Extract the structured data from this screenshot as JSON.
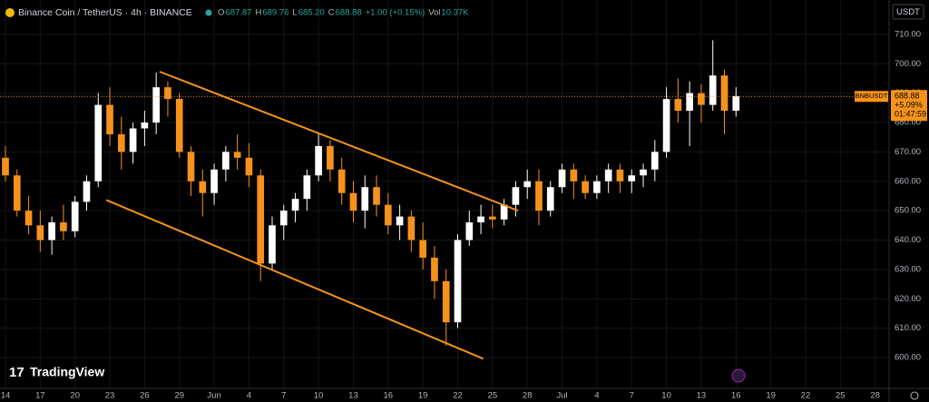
{
  "header": {
    "symbol": "Binance Coin / TetherUS · 4h · BINANCE",
    "ohlc": [
      {
        "label": "O",
        "value": "687.87"
      },
      {
        "label": "H",
        "value": "689.76"
      },
      {
        "label": "L",
        "value": "685.20"
      },
      {
        "label": "C",
        "value": "688.88"
      }
    ],
    "change": "+1.00 (+0.15%)",
    "volume_label": "Vol",
    "volume": "10.37K",
    "currency": "USDT",
    "logo": "TradingView"
  },
  "chart_data": {
    "type": "candlestick",
    "x": [
      0,
      1,
      2,
      3,
      4,
      5,
      6,
      7,
      8,
      9,
      10,
      11,
      12,
      13,
      14,
      15,
      16,
      17,
      18,
      19,
      20,
      21,
      22,
      23,
      24,
      25,
      26,
      27,
      28,
      29,
      30,
      31,
      32,
      33,
      34,
      35,
      36,
      37,
      38,
      39,
      40,
      41,
      42,
      43,
      44,
      45,
      46,
      47,
      48,
      49,
      50,
      51,
      52,
      53,
      54,
      55,
      56,
      57,
      58,
      59,
      60,
      61,
      62,
      63
    ],
    "open": [
      668,
      662,
      650,
      645,
      640,
      646,
      643,
      653,
      660,
      686,
      676,
      670,
      678,
      680,
      692,
      688,
      670,
      660,
      656,
      664,
      670,
      668,
      662,
      632,
      645,
      650,
      654,
      662,
      672,
      664,
      656,
      650,
      658,
      652,
      645,
      648,
      640,
      634,
      626,
      612,
      640,
      646,
      648,
      647,
      652,
      658,
      660,
      650,
      658,
      664,
      660,
      656,
      660,
      664,
      660,
      662,
      664,
      670,
      688,
      684,
      690,
      686,
      696,
      684
    ],
    "high": [
      672,
      664,
      655,
      650,
      648,
      652,
      655,
      662,
      690,
      692,
      682,
      680,
      684,
      697,
      694,
      690,
      672,
      664,
      666,
      672,
      676,
      673,
      664,
      648,
      652,
      656,
      664,
      676,
      674,
      668,
      660,
      662,
      662,
      656,
      652,
      650,
      646,
      638,
      630,
      642,
      650,
      652,
      652,
      654,
      660,
      664,
      664,
      660,
      666,
      666,
      662,
      662,
      666,
      666,
      664,
      666,
      674,
      692,
      695,
      694,
      693,
      708,
      698,
      692
    ],
    "low": [
      660,
      648,
      642,
      636,
      635,
      640,
      641,
      650,
      658,
      672,
      664,
      666,
      672,
      676,
      682,
      668,
      655,
      648,
      652,
      660,
      664,
      658,
      626,
      630,
      640,
      646,
      650,
      660,
      660,
      652,
      646,
      644,
      648,
      642,
      640,
      636,
      630,
      620,
      604,
      610,
      638,
      642,
      644,
      645,
      648,
      654,
      645,
      648,
      656,
      654,
      654,
      654,
      656,
      656,
      656,
      658,
      660,
      668,
      680,
      672,
      680,
      684,
      676,
      682
    ],
    "close": [
      662,
      650,
      645,
      640,
      646,
      643,
      653,
      660,
      686,
      676,
      670,
      678,
      680,
      692,
      688,
      670,
      660,
      656,
      664,
      670,
      668,
      662,
      632,
      645,
      650,
      654,
      662,
      672,
      664,
      656,
      650,
      658,
      652,
      645,
      648,
      640,
      634,
      626,
      612,
      640,
      646,
      648,
      647,
      652,
      658,
      660,
      650,
      658,
      664,
      660,
      656,
      660,
      664,
      660,
      662,
      664,
      670,
      688,
      684,
      690,
      686,
      696,
      684,
      689
    ],
    "up_color": "#ffffff",
    "down_color": "#f5921b",
    "trendlines": [
      {
        "x": [
          13.3,
          44.2
        ],
        "y": [
          697.3,
          650.0
        ]
      },
      {
        "x": [
          8.7,
          41.2
        ],
        "y": [
          653.6,
          599.6
        ]
      }
    ],
    "trendline_color": "#f7931a",
    "last_price": 688.88,
    "last_price_symbol": "BNBUSDT",
    "last_price_change": "+5.09%",
    "countdown": "01:47:59",
    "xlim": [
      -0.47,
      76.2
    ],
    "ylim": [
      589.5,
      721.7
    ],
    "yticks": [
      {
        "value": 600,
        "label": "600.00"
      },
      {
        "value": 610,
        "label": "610.00"
      },
      {
        "value": 620,
        "label": "620.00"
      },
      {
        "value": 630,
        "label": "630.00"
      },
      {
        "value": 640,
        "label": "640.00"
      },
      {
        "value": 650,
        "label": "650.00"
      },
      {
        "value": 660,
        "label": "660.00"
      },
      {
        "value": 670,
        "label": "670.00"
      },
      {
        "value": 680,
        "label": "680.00"
      },
      {
        "value": 690,
        "label": "690.00"
      },
      {
        "value": 700,
        "label": "700.00"
      },
      {
        "value": 710,
        "label": "710.00"
      }
    ],
    "xticks": [
      {
        "value": 0,
        "label": "14"
      },
      {
        "value": 3,
        "label": "17"
      },
      {
        "value": 6,
        "label": "20"
      },
      {
        "value": 9,
        "label": "23"
      },
      {
        "value": 12,
        "label": "26"
      },
      {
        "value": 15,
        "label": "29"
      },
      {
        "value": 18,
        "label": "Jun"
      },
      {
        "value": 21,
        "label": "4"
      },
      {
        "value": 24,
        "label": "7"
      },
      {
        "value": 27,
        "label": "10"
      },
      {
        "value": 30,
        "label": "13"
      },
      {
        "value": 33,
        "label": "16"
      },
      {
        "value": 36,
        "label": "19"
      },
      {
        "value": 39,
        "label": "22"
      },
      {
        "value": 42,
        "label": "25"
      },
      {
        "value": 45,
        "label": "28"
      },
      {
        "value": 48,
        "label": "Jul"
      },
      {
        "value": 51,
        "label": "4"
      },
      {
        "value": 54,
        "label": "7"
      },
      {
        "value": 57,
        "label": "10"
      },
      {
        "value": 60,
        "label": "13"
      },
      {
        "value": 63,
        "label": "16"
      },
      {
        "value": 66,
        "label": "19"
      },
      {
        "value": 69,
        "label": "22"
      },
      {
        "value": 72,
        "label": "25"
      },
      {
        "value": 75,
        "label": "28"
      }
    ],
    "grid": true
  }
}
